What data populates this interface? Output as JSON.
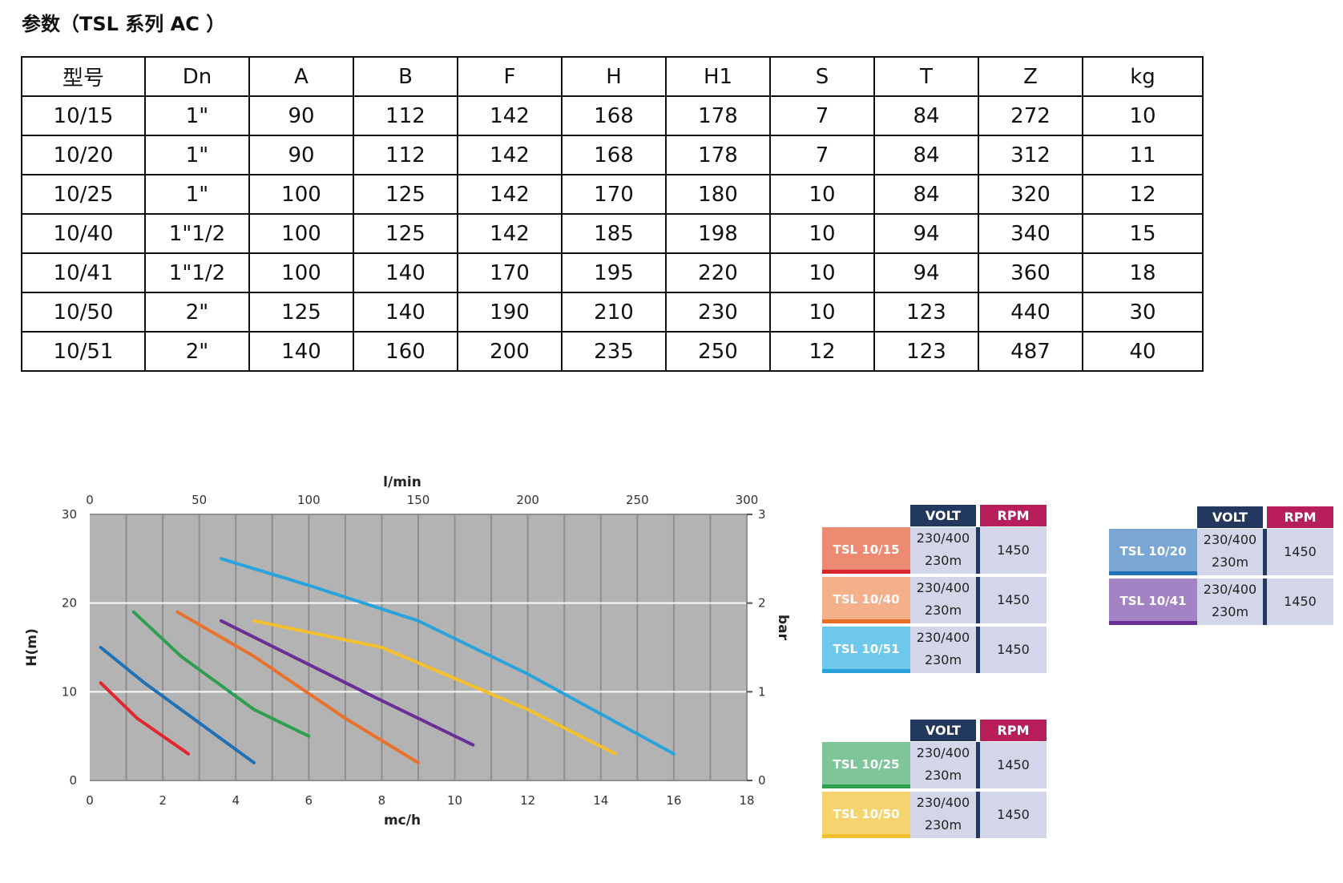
{
  "title": "参数（TSL 系列 AC ）",
  "table": {
    "headers": [
      "型号",
      "Dn",
      "A",
      "B",
      "F",
      "H",
      "H1",
      "S",
      "T",
      "Z",
      "kg"
    ],
    "rows": [
      [
        "10/15",
        "1\"",
        "90",
        "112",
        "142",
        "168",
        "178",
        "7",
        "84",
        "272",
        "10"
      ],
      [
        "10/20",
        "1\"",
        "90",
        "112",
        "142",
        "168",
        "178",
        "7",
        "84",
        "312",
        "11"
      ],
      [
        "10/25",
        "1\"",
        "100",
        "125",
        "142",
        "170",
        "180",
        "10",
        "84",
        "320",
        "12"
      ],
      [
        "10/40",
        "1\"1/2",
        "100",
        "125",
        "142",
        "185",
        "198",
        "10",
        "94",
        "340",
        "15"
      ],
      [
        "10/41",
        "1\"1/2",
        "100",
        "140",
        "170",
        "195",
        "220",
        "10",
        "94",
        "360",
        "18"
      ],
      [
        "10/50",
        "2\"",
        "125",
        "140",
        "190",
        "210",
        "230",
        "10",
        "123",
        "440",
        "30"
      ],
      [
        "10/51",
        "2\"",
        "140",
        "160",
        "200",
        "235",
        "250",
        "12",
        "123",
        "487",
        "40"
      ]
    ]
  },
  "chart_data": {
    "type": "line",
    "xlabel": "mc/h",
    "ylabel": "H(m)",
    "x2label": "l/min",
    "y2label": "bar",
    "xlim": [
      0,
      18
    ],
    "ylim": [
      0,
      30
    ],
    "x2lim": [
      0,
      300
    ],
    "y2lim": [
      0,
      3
    ],
    "xticks": [
      "0",
      "2",
      "4",
      "6",
      "8",
      "10",
      "12",
      "14",
      "16",
      "18"
    ],
    "yticks": [
      "0",
      "10",
      "20",
      "30"
    ],
    "x2ticks": [
      "0",
      "50",
      "100",
      "150",
      "200",
      "250",
      "300"
    ],
    "y2ticks": [
      "0",
      "1",
      "2",
      "3"
    ],
    "grid": true,
    "background": "#b3b3b3",
    "series": [
      {
        "color": "#e0262f",
        "points": [
          [
            0.3,
            11
          ],
          [
            1.3,
            7
          ],
          [
            2.7,
            3
          ]
        ]
      },
      {
        "color": "#2171b5",
        "points": [
          [
            0.3,
            15
          ],
          [
            1.5,
            11
          ],
          [
            3.5,
            5
          ],
          [
            4.5,
            2
          ]
        ]
      },
      {
        "color": "#2e9e4f",
        "points": [
          [
            1.2,
            19
          ],
          [
            2.5,
            14
          ],
          [
            4.5,
            8
          ],
          [
            6,
            5
          ]
        ]
      },
      {
        "color": "#e8722b",
        "points": [
          [
            2.4,
            19
          ],
          [
            4.5,
            14
          ],
          [
            7,
            7
          ],
          [
            9,
            2
          ]
        ]
      },
      {
        "color": "#6a2f96",
        "points": [
          [
            3.6,
            18
          ],
          [
            7.5,
            10
          ],
          [
            10.5,
            4
          ]
        ]
      },
      {
        "color": "#f4c02c",
        "points": [
          [
            4.5,
            18
          ],
          [
            8,
            15
          ],
          [
            12,
            8
          ],
          [
            14.4,
            3
          ]
        ]
      },
      {
        "color": "#2aa3dc",
        "points": [
          [
            3.6,
            25
          ],
          [
            6,
            22
          ],
          [
            9,
            18
          ],
          [
            12,
            12
          ],
          [
            16,
            3
          ]
        ]
      }
    ]
  },
  "legend_groups": [
    {
      "volt_header": "VOLT",
      "rpm_header": "RPM",
      "items": [
        {
          "name": "TSL 10/15",
          "color": "#ed8b72",
          "bar": "#d9262e",
          "volt1": "230/400",
          "volt2": "230m",
          "rpm": "1450"
        },
        {
          "name": "TSL 10/40",
          "color": "#f4b08a",
          "bar": "#e66d22",
          "volt1": "230/400",
          "volt2": "230m",
          "rpm": "1450"
        },
        {
          "name": "TSL 10/51",
          "color": "#6ec8ec",
          "bar": "#2aa3dc",
          "volt1": "230/400",
          "volt2": "230m",
          "rpm": "1450"
        }
      ]
    },
    {
      "volt_header": "VOLT",
      "rpm_header": "RPM",
      "items": [
        {
          "name": "TSL 10/20",
          "color": "#7aa6d6",
          "bar": "#2171b5",
          "volt1": "230/400",
          "volt2": "230m",
          "rpm": "1450"
        },
        {
          "name": "TSL 10/41",
          "color": "#a483c4",
          "bar": "#6a2f96",
          "volt1": "230/400",
          "volt2": "230m",
          "rpm": "1450"
        }
      ]
    },
    {
      "volt_header": "VOLT",
      "rpm_header": "RPM",
      "items": [
        {
          "name": "TSL 10/25",
          "color": "#7fc59a",
          "bar": "#2e9e4f",
          "volt1": "230/400",
          "volt2": "230m",
          "rpm": "1450"
        },
        {
          "name": "TSL 10/50",
          "color": "#f5d470",
          "bar": "#f4c02c",
          "volt1": "230/400",
          "volt2": "230m",
          "rpm": "1450"
        }
      ]
    }
  ],
  "colors": {
    "volt_header": "#23385e",
    "rpm_header": "#b81e5a",
    "cell_bg": "#d3d6e8"
  }
}
